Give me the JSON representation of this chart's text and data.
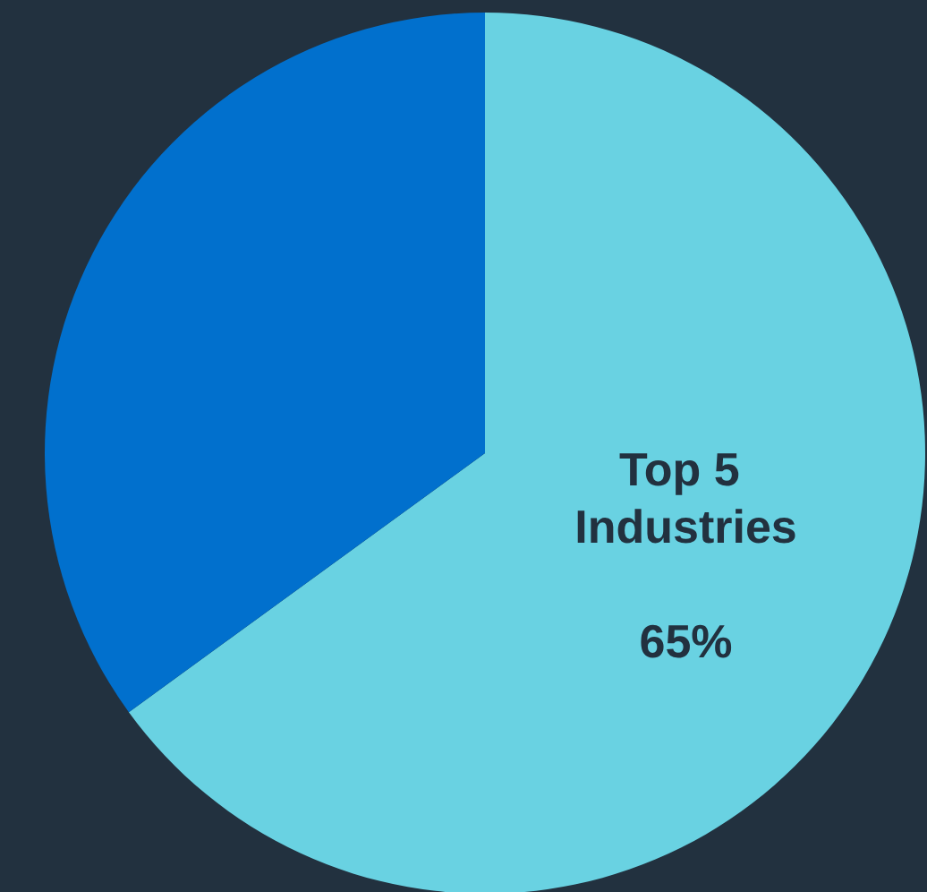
{
  "chart_data": {
    "type": "pie",
    "categories": [
      "Top 5 Industries",
      null
    ],
    "values": [
      65,
      35
    ],
    "value_labels": [
      "65%",
      null
    ],
    "colors": [
      "#69d2e2",
      "#0170cd"
    ],
    "legend": false
  }
}
